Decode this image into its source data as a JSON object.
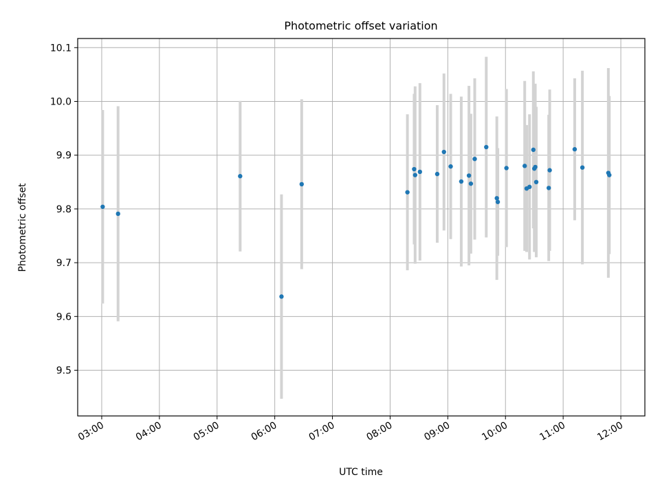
{
  "chart_data": {
    "type": "scatter",
    "title": "Photometric offset variation",
    "xlabel": "UTC time",
    "ylabel": "Photometric offset",
    "x_unit": "hours UTC",
    "xlim": [
      "02:35",
      "12:25"
    ],
    "ylim": [
      9.415,
      10.117
    ],
    "x_ticks": [
      "03:00",
      "04:00",
      "05:00",
      "06:00",
      "07:00",
      "08:00",
      "09:00",
      "10:00",
      "11:00",
      "12:00"
    ],
    "y_ticks": [
      "9.5",
      "9.6",
      "9.7",
      "9.8",
      "9.9",
      "10.0",
      "10.1"
    ],
    "grid": true,
    "colors": {
      "point": "#1f77b4",
      "errorbar": "#d3d3d3",
      "grid": "#b0b0b0"
    },
    "points": [
      {
        "t": "03:01",
        "y": 9.804,
        "err": 0.18
      },
      {
        "t": "03:17",
        "y": 9.791,
        "err": 0.2
      },
      {
        "t": "05:24",
        "y": 9.861,
        "err": 0.14
      },
      {
        "t": "06:07",
        "y": 9.637,
        "err": 0.19
      },
      {
        "t": "06:28",
        "y": 9.846,
        "err": 0.158
      },
      {
        "t": "08:18",
        "y": 9.831,
        "err": 0.145
      },
      {
        "t": "08:25",
        "y": 9.874,
        "err": 0.14
      },
      {
        "t": "08:26",
        "y": 9.863,
        "err": 0.165
      },
      {
        "t": "08:31",
        "y": 9.869,
        "err": 0.165
      },
      {
        "t": "08:49",
        "y": 9.865,
        "err": 0.128
      },
      {
        "t": "08:56",
        "y": 9.906,
        "err": 0.146
      },
      {
        "t": "09:03",
        "y": 9.879,
        "err": 0.135
      },
      {
        "t": "09:14",
        "y": 9.851,
        "err": 0.158
      },
      {
        "t": "09:22",
        "y": 9.862,
        "err": 0.167
      },
      {
        "t": "09:24",
        "y": 9.847,
        "err": 0.13
      },
      {
        "t": "09:28",
        "y": 9.893,
        "err": 0.15
      },
      {
        "t": "09:40",
        "y": 9.915,
        "err": 0.168
      },
      {
        "t": "09:51",
        "y": 9.82,
        "err": 0.152
      },
      {
        "t": "09:52",
        "y": 9.813,
        "err": 0.1
      },
      {
        "t": "10:01",
        "y": 9.876,
        "err": 0.147
      },
      {
        "t": "10:20",
        "y": 9.88,
        "err": 0.158
      },
      {
        "t": "10:22",
        "y": 9.838,
        "err": 0.118
      },
      {
        "t": "10:25",
        "y": 9.841,
        "err": 0.135
      },
      {
        "t": "10:29",
        "y": 9.91,
        "err": 0.146
      },
      {
        "t": "10:30",
        "y": 9.875,
        "err": 0.155
      },
      {
        "t": "10:31",
        "y": 9.878,
        "err": 0.155
      },
      {
        "t": "10:32",
        "y": 9.85,
        "err": 0.14
      },
      {
        "t": "10:45",
        "y": 9.839,
        "err": 0.136
      },
      {
        "t": "10:46",
        "y": 9.872,
        "err": 0.15
      },
      {
        "t": "11:12",
        "y": 9.911,
        "err": 0.132
      },
      {
        "t": "11:20",
        "y": 9.877,
        "err": 0.18
      },
      {
        "t": "11:47",
        "y": 9.867,
        "err": 0.195
      },
      {
        "t": "11:48",
        "y": 9.863,
        "err": 0.147
      }
    ]
  }
}
